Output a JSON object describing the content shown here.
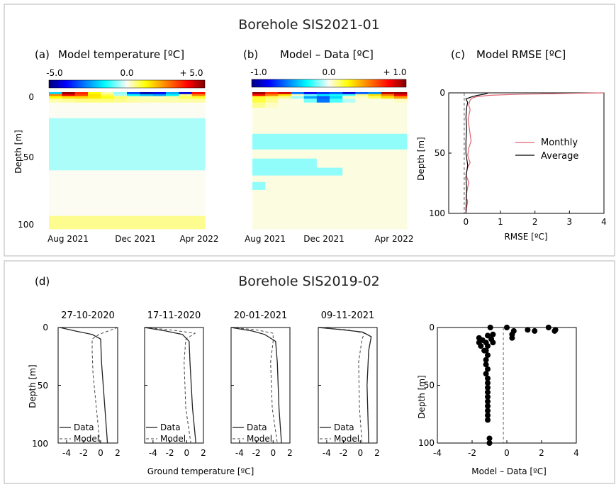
{
  "figure": {
    "panel_top_title": "Borehole SIS2021-01",
    "panel_bottom_title": "Borehole SIS2019-02",
    "colors": {
      "monthly_line": "#e06070",
      "average_line": "#000000",
      "frame": "#b5b5b5"
    }
  },
  "chart_data": [
    {
      "id": "a",
      "type": "heatmap",
      "panel_label": "(a)",
      "title": "Model temperature [ºC]",
      "colorbar_ticks": [
        "-5.0",
        "0.0",
        "+ 5.0"
      ],
      "colorbar_range": [
        -5,
        5
      ],
      "xticks": [
        "Aug 2021",
        "Dec 2021",
        "Apr 2022"
      ],
      "yticks": [
        "0",
        "50",
        "100"
      ],
      "ylabel": "Depth [m]",
      "ylim": [
        0,
        105
      ],
      "columns": 12,
      "bands": [
        {
          "depth_top": 0,
          "depth_bottom": 1.5,
          "values": [
            -1.8,
            4.8,
            3.5,
            1.2,
            0.4,
            -0.6,
            -3.2,
            -4.6,
            -4.0,
            -2.2,
            -4.2,
            3.8
          ]
        },
        {
          "depth_top": 1.5,
          "depth_bottom": 3,
          "values": [
            2.5,
            4.0,
            3.2,
            1.5,
            0.8,
            -0.4,
            -1.5,
            -2.0,
            -2.3,
            -1.5,
            0.5,
            2.5
          ]
        },
        {
          "depth_top": 3,
          "depth_bottom": 5,
          "values": [
            1.2,
            1.5,
            1.6,
            1.4,
            1.1,
            0.7,
            0.4,
            0.3,
            0.3,
            0.4,
            0.8,
            1.0
          ]
        },
        {
          "depth_top": 5,
          "depth_bottom": 8,
          "values": [
            0.35,
            0.45,
            0.55,
            0.6,
            0.6,
            0.5,
            0.4,
            0.35,
            0.35,
            0.35,
            0.4,
            0.4
          ]
        },
        {
          "depth_top": 8,
          "depth_bottom": 20,
          "values": [
            0.02,
            0.02,
            0.02,
            0.02,
            0.02,
            0.02,
            0.02,
            0.02,
            0.02,
            0.02,
            0.02,
            0.02
          ]
        },
        {
          "depth_top": 20,
          "depth_bottom": 60,
          "values": [
            -0.45,
            -0.45,
            -0.45,
            -0.45,
            -0.45,
            -0.45,
            -0.45,
            -0.45,
            -0.45,
            -0.45,
            -0.45,
            -0.45
          ]
        },
        {
          "depth_top": 60,
          "depth_bottom": 95,
          "values": [
            0.02,
            0.02,
            0.02,
            0.02,
            0.02,
            0.02,
            0.02,
            0.02,
            0.02,
            0.02,
            0.02,
            0.02
          ]
        },
        {
          "depth_top": 95,
          "depth_bottom": 105,
          "values": [
            0.5,
            0.5,
            0.5,
            0.5,
            0.5,
            0.5,
            0.5,
            0.5,
            0.5,
            0.5,
            0.5,
            0.5
          ]
        }
      ]
    },
    {
      "id": "b",
      "type": "heatmap",
      "panel_label": "(b)",
      "title": "Model – Data [ºC]",
      "colorbar_ticks": [
        "-1.0",
        "0.0",
        "+ 1.0"
      ],
      "colorbar_range": [
        -1,
        1
      ],
      "xticks": [
        "Aug 2021",
        "Dec 2021",
        "Apr 2022"
      ],
      "ylim": [
        0,
        105
      ],
      "columns": 12,
      "bands": [
        {
          "depth_top": 0,
          "depth_bottom": 1.5,
          "values": [
            0.95,
            0.7,
            0.85,
            -0.55,
            -0.8,
            -0.7,
            -0.6,
            -0.85,
            -0.6,
            -0.5,
            0.9,
            0.95
          ]
        },
        {
          "depth_top": 1.5,
          "depth_bottom": 3,
          "values": [
            0.75,
            0.5,
            0.3,
            0.05,
            -0.15,
            -0.3,
            -0.25,
            -0.2,
            0.1,
            0.3,
            0.5,
            0.8
          ]
        },
        {
          "depth_top": 3,
          "depth_bottom": 5,
          "values": [
            0.2,
            0.15,
            0.1,
            -0.1,
            -0.45,
            -0.6,
            -0.35,
            0.05,
            0.05,
            0.15,
            0.3,
            0.45
          ]
        },
        {
          "depth_top": 5,
          "depth_bottom": 8,
          "values": [
            0.18,
            0.1,
            0.02,
            0.02,
            -0.15,
            -0.55,
            -0.2,
            -0.08,
            0.02,
            0.02,
            0.02,
            0.05
          ]
        },
        {
          "depth_top": 8,
          "depth_bottom": 12,
          "values": [
            0.1,
            0.05,
            0.02,
            0.02,
            0.02,
            0.02,
            0.02,
            0.02,
            0.02,
            0.02,
            0.02,
            0.02
          ]
        },
        {
          "depth_top": 12,
          "depth_bottom": 32,
          "values": [
            0.02,
            0.02,
            0.02,
            0.02,
            0.02,
            0.02,
            0.02,
            0.02,
            0.02,
            0.02,
            0.02,
            0.02
          ]
        },
        {
          "depth_top": 32,
          "depth_bottom": 38,
          "values": [
            -0.12,
            -0.12,
            -0.12,
            -0.12,
            -0.12,
            -0.12,
            -0.12,
            -0.12,
            -0.12,
            -0.12,
            -0.12,
            -0.12
          ]
        },
        {
          "depth_top": 38,
          "depth_bottom": 44,
          "values": [
            -0.12,
            -0.12,
            -0.12,
            -0.12,
            -0.12,
            -0.12,
            -0.12,
            -0.12,
            -0.12,
            -0.12,
            -0.12,
            -0.12
          ]
        },
        {
          "depth_top": 44,
          "depth_bottom": 51,
          "values": [
            0.02,
            0.02,
            0.02,
            0.02,
            0.02,
            0.02,
            0.02,
            0.02,
            0.02,
            0.02,
            0.02,
            0.02
          ]
        },
        {
          "depth_top": 51,
          "depth_bottom": 58,
          "values": [
            -0.12,
            -0.12,
            -0.12,
            -0.12,
            -0.12,
            0.02,
            0.02,
            0.02,
            0.02,
            0.02,
            0.02,
            0.02
          ]
        },
        {
          "depth_top": 58,
          "depth_bottom": 64,
          "values": [
            -0.12,
            -0.12,
            -0.12,
            -0.12,
            -0.12,
            -0.12,
            -0.12,
            0.02,
            0.02,
            0.02,
            0.02,
            0.02
          ]
        },
        {
          "depth_top": 64,
          "depth_bottom": 69,
          "values": [
            0.02,
            0.02,
            0.02,
            0.02,
            0.02,
            0.02,
            0.02,
            0.02,
            0.02,
            0.02,
            0.02,
            0.02
          ]
        },
        {
          "depth_top": 69,
          "depth_bottom": 75,
          "values": [
            -0.12,
            0.02,
            0.02,
            0.02,
            0.02,
            0.02,
            0.02,
            0.02,
            0.02,
            0.02,
            0.02,
            0.02
          ]
        },
        {
          "depth_top": 75,
          "depth_bottom": 105,
          "values": [
            0.02,
            0.02,
            0.02,
            0.02,
            0.02,
            0.02,
            0.02,
            0.02,
            0.02,
            0.02,
            0.02,
            0.02
          ]
        }
      ]
    },
    {
      "id": "c",
      "type": "line",
      "panel_label": "(c)",
      "title": "Model RMSE [ºC]",
      "xlabel": "RMSE [ºC]",
      "ylabel": "Depth [m]",
      "xlim": [
        -0.5,
        4
      ],
      "ylim": [
        0,
        100
      ],
      "xticks": [
        "0",
        "1",
        "2",
        "3",
        "4"
      ],
      "yticks": [
        "0",
        "50",
        "100"
      ],
      "series": [
        {
          "name": "Monthly",
          "color": "#e06070",
          "x": [
            4.0,
            3.0,
            2.2,
            1.4,
            0.7,
            0.35,
            0.2,
            0.12,
            0.08,
            0.12,
            0.06,
            0.1,
            0.15,
            0.08,
            0.05,
            0.12,
            0.05,
            0.0,
            0.08,
            0.04,
            0.0,
            0.05,
            0.02,
            0.0
          ],
          "y": [
            0,
            0.4,
            0.8,
            1.3,
            2,
            3,
            4,
            6,
            10,
            14,
            22,
            30,
            40,
            46,
            52,
            58,
            62,
            68,
            74,
            80,
            86,
            90,
            95,
            100
          ]
        },
        {
          "name": "Average",
          "color": "#000000",
          "x": [
            0.65,
            0.55,
            0.35,
            0.2,
            0.0,
            0.05,
            0.02,
            0.0,
            0.02,
            0.0,
            0.0,
            0.05,
            0.0,
            0.02,
            0.0
          ],
          "y": [
            0,
            1,
            2,
            3,
            5,
            8,
            12,
            20,
            30,
            40,
            50,
            60,
            70,
            80,
            98
          ]
        }
      ],
      "reference_line_x": -0.05,
      "legend": [
        "Monthly",
        "Average"
      ],
      "legend_position": "right"
    },
    {
      "id": "d",
      "type": "line",
      "panel_label": "(d)",
      "xlabel": "Ground temperature [ºC]",
      "ylabel": "Depth [m]",
      "xlim": [
        -5,
        2
      ],
      "ylim": [
        0,
        100
      ],
      "xticks": [
        "-4",
        "-2",
        "0",
        "2"
      ],
      "yticks": [
        "0",
        "50",
        "100"
      ],
      "legend": [
        "Data",
        "Model"
      ],
      "legend_position": "bottom-left",
      "subplots": [
        {
          "title": "27-10-2020",
          "data": {
            "x": [
              -4.8,
              -3.0,
              -1.0,
              0.0,
              0.1,
              0.5,
              0.8
            ],
            "y": [
              0,
              3,
              6,
              10,
              30,
              70,
              100
            ]
          },
          "model": {
            "x": [
              2.0,
              -0.2,
              -1.0,
              -1.0,
              -0.9,
              -0.5,
              -0.1
            ],
            "y": [
              0,
              6,
              10,
              20,
              40,
              70,
              100
            ]
          }
        },
        {
          "title": "17-11-2020",
          "data": {
            "x": [
              -5.0,
              -2.5,
              -0.5,
              0.3,
              0.4,
              0.7,
              1.1
            ],
            "y": [
              0,
              3,
              6,
              12,
              30,
              70,
              100
            ]
          },
          "model": {
            "x": [
              -5.0,
              -2.0,
              1.0,
              -0.1,
              -0.3,
              -0.1,
              0.5
            ],
            "y": [
              0,
              2,
              5,
              10,
              30,
              70,
              100
            ]
          }
        },
        {
          "title": "20-01-2021",
          "data": {
            "x": [
              -5.0,
              -2.5,
              -1.0,
              0.3,
              0.5,
              0.7,
              1.0
            ],
            "y": [
              0,
              3,
              6,
              12,
              30,
              70,
              100
            ]
          },
          "model": {
            "x": [
              -5.0,
              -2.0,
              0.0,
              0.0,
              -0.3,
              -0.1,
              0.5
            ],
            "y": [
              0,
              2,
              5,
              12,
              30,
              70,
              100
            ]
          }
        },
        {
          "title": "09-11-2021",
          "data": {
            "x": [
              -5.0,
              -2.0,
              0.3,
              1.3,
              1.0,
              0.8,
              1.0
            ],
            "y": [
              0,
              2,
              4,
              8,
              20,
              50,
              100
            ]
          },
          "model": {
            "x": [
              -5.0,
              -1.5,
              0.5,
              0.2,
              -0.2,
              -0.1,
              0.2
            ],
            "y": [
              0,
              2,
              5,
              10,
              30,
              70,
              100
            ]
          }
        }
      ]
    },
    {
      "id": "d-right",
      "type": "scatter",
      "xlabel": "Model – Data [ºC]",
      "ylabel": "Depth [m]",
      "xlim": [
        -4,
        4
      ],
      "ylim": [
        0,
        100
      ],
      "xticks": [
        "-4",
        "-2",
        "0",
        "2",
        "4"
      ],
      "yticks": [
        "0",
        "50",
        "100"
      ],
      "reference_line_x": -0.2,
      "x": [
        -0.95,
        0.0,
        -1.6,
        -1.1,
        -0.8,
        0.4,
        1.2,
        1.6,
        2.4,
        2.8,
        2.75,
        0.3,
        0.3,
        -1.4,
        -0.9,
        -1.2,
        -1.6,
        -0.8,
        -1.1,
        -1.5,
        -1.2,
        -1.3,
        -1.1,
        -1.2,
        -1.2,
        -1.1,
        -1.2,
        -1.1,
        -1.1,
        -1.1,
        -1.1,
        -1.1,
        -1.1,
        -1.1,
        -1.1,
        -1.1,
        -1.1,
        -1.0,
        -1.0
      ],
      "y": [
        0,
        0,
        9,
        7,
        6,
        3,
        2,
        3,
        0,
        2,
        3,
        6,
        9,
        11,
        10,
        13,
        13,
        13,
        16,
        16,
        20,
        20,
        24,
        28,
        32,
        36,
        40,
        44,
        48,
        52,
        56,
        60,
        64,
        68,
        72,
        76,
        80,
        96,
        100
      ]
    }
  ]
}
